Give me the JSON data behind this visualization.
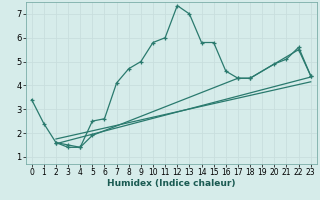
{
  "title": "",
  "xlabel": "Humidex (Indice chaleur)",
  "background_color": "#d6ecea",
  "grid_color": "#c8dedd",
  "line_color": "#2a7a6e",
  "xlim": [
    -0.5,
    23.5
  ],
  "ylim": [
    0.7,
    7.5
  ],
  "xticks": [
    0,
    1,
    2,
    3,
    4,
    5,
    6,
    7,
    8,
    9,
    10,
    11,
    12,
    13,
    14,
    15,
    16,
    17,
    18,
    19,
    20,
    21,
    22,
    23
  ],
  "yticks": [
    1,
    2,
    3,
    4,
    5,
    6,
    7
  ],
  "main_x": [
    0,
    1,
    2,
    3,
    4,
    5,
    6,
    7,
    8,
    9,
    10,
    11,
    12,
    13,
    14,
    15,
    16,
    17,
    18,
    20,
    21,
    22,
    23
  ],
  "main_y": [
    3.4,
    2.4,
    1.6,
    1.4,
    1.4,
    2.5,
    2.6,
    4.1,
    4.7,
    5.0,
    5.8,
    6.0,
    7.35,
    7.0,
    5.8,
    5.8,
    4.6,
    4.3,
    4.3,
    4.9,
    5.1,
    5.6,
    4.4
  ],
  "line2_x": [
    2,
    3,
    4,
    5,
    17,
    18,
    22,
    23
  ],
  "line2_y": [
    1.6,
    1.5,
    1.4,
    1.9,
    4.3,
    4.3,
    5.5,
    4.4
  ],
  "line3_x": [
    2,
    23
  ],
  "line3_y": [
    1.55,
    4.35
  ],
  "line4_x": [
    2,
    23
  ],
  "line4_y": [
    1.75,
    4.15
  ]
}
